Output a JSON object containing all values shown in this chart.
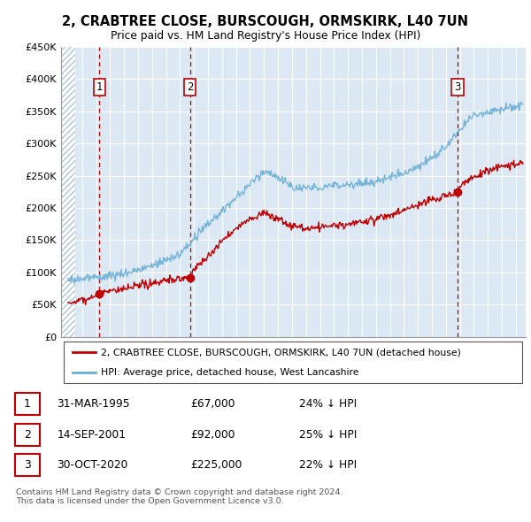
{
  "title": "2, CRABTREE CLOSE, BURSCOUGH, ORMSKIRK, L40 7UN",
  "subtitle": "Price paid vs. HM Land Registry's House Price Index (HPI)",
  "ylim": [
    0,
    450000
  ],
  "yticks": [
    0,
    50000,
    100000,
    150000,
    200000,
    250000,
    300000,
    350000,
    400000,
    450000
  ],
  "ytick_labels": [
    "£0",
    "£50K",
    "£100K",
    "£150K",
    "£200K",
    "£250K",
    "£300K",
    "£350K",
    "£400K",
    "£450K"
  ],
  "hpi_color": "#6baed6",
  "price_color": "#c00000",
  "transactions": [
    {
      "date_x": 1995.25,
      "price": 67000,
      "label": "1"
    },
    {
      "date_x": 2001.71,
      "price": 92000,
      "label": "2"
    },
    {
      "date_x": 2020.83,
      "price": 225000,
      "label": "3"
    }
  ],
  "legend_label_price": "2, CRABTREE CLOSE, BURSCOUGH, ORMSKIRK, L40 7UN (detached house)",
  "legend_label_hpi": "HPI: Average price, detached house, West Lancashire",
  "table_rows": [
    {
      "num": "1",
      "date": "31-MAR-1995",
      "price": "£67,000",
      "pct": "24% ↓ HPI"
    },
    {
      "num": "2",
      "date": "14-SEP-2001",
      "price": "£92,000",
      "pct": "25% ↓ HPI"
    },
    {
      "num": "3",
      "date": "30-OCT-2020",
      "price": "£225,000",
      "pct": "22% ↓ HPI"
    }
  ],
  "footer": "Contains HM Land Registry data © Crown copyright and database right 2024.\nThis data is licensed under the Open Government Licence v3.0.",
  "xlim_left": 1992.5,
  "xlim_right": 2025.7,
  "hatch_end": 1993.5
}
